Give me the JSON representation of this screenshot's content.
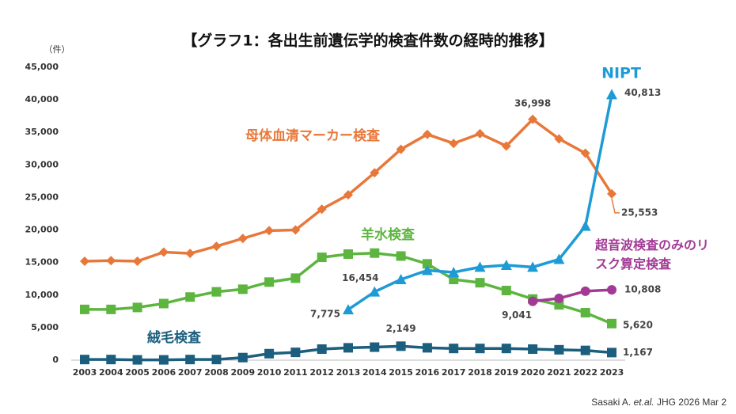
{
  "chart_data": {
    "type": "line",
    "title": "【グラフ1：各出生前遺伝学的検査件数の経時的推移】",
    "y_unit": "（件）",
    "categories": [
      "2003",
      "2004",
      "2005",
      "2006",
      "2007",
      "2008",
      "2009",
      "2010",
      "2011",
      "2012",
      "2013",
      "2014",
      "2015",
      "2016",
      "2017",
      "2018",
      "2019",
      "2020",
      "2021",
      "2022",
      "2023"
    ],
    "ylim": [
      0,
      45000
    ],
    "yticks": [
      0,
      {
        "value": 5000,
        "label": "5,000"
      },
      {
        "value": 10000,
        "label": "10,000"
      },
      {
        "value": 15000,
        "label": "15,000"
      },
      {
        "value": 20000,
        "label": "20,000"
      },
      {
        "value": 25000,
        "label": "25,000"
      },
      {
        "value": 30000,
        "label": "30,000"
      },
      {
        "value": 35000,
        "label": "35,000"
      },
      {
        "value": 40000,
        "label": "40,000"
      },
      {
        "value": 45000,
        "label": "45,000"
      }
    ],
    "grid": false,
    "series": [
      {
        "name": "母体血清マーカー検査",
        "color": "#E8783A",
        "marker": "diamond",
        "values": [
          15200,
          15300,
          15200,
          16600,
          16400,
          17500,
          18700,
          19900,
          20000,
          23200,
          25400,
          28800,
          32400,
          34700,
          33300,
          34800,
          32900,
          36998,
          34000,
          31800,
          25553
        ],
        "value_labels": [
          null,
          null,
          null,
          null,
          null,
          null,
          null,
          null,
          null,
          null,
          null,
          null,
          null,
          null,
          null,
          null,
          null,
          "36,998",
          null,
          null,
          "25,553"
        ]
      },
      {
        "name": "羊水検査",
        "color": "#5DB540",
        "marker": "square",
        "values": [
          7800,
          7800,
          8100,
          8700,
          9700,
          10500,
          10900,
          12000,
          12600,
          15800,
          16300,
          16454,
          16000,
          14800,
          12400,
          11900,
          10700,
          9400,
          8500,
          7300,
          5620
        ],
        "value_labels": [
          null,
          null,
          null,
          null,
          null,
          null,
          null,
          null,
          null,
          null,
          null,
          "16,454",
          null,
          null,
          null,
          null,
          null,
          null,
          null,
          null,
          "5,620"
        ]
      },
      {
        "name": "絨毛検査",
        "color": "#1B5E7E",
        "marker": "square",
        "values": [
          100,
          100,
          50,
          50,
          100,
          100,
          400,
          1000,
          1200,
          1700,
          1900,
          2000,
          2149,
          1900,
          1800,
          1800,
          1800,
          1700,
          1600,
          1500,
          1167
        ],
        "value_labels": [
          null,
          null,
          null,
          null,
          null,
          null,
          null,
          null,
          null,
          null,
          null,
          null,
          "2,149",
          null,
          null,
          null,
          null,
          null,
          null,
          null,
          "1,167"
        ]
      },
      {
        "name": "NIPT",
        "color": "#1E9BD7",
        "marker": "triangle",
        "values": [
          null,
          null,
          null,
          null,
          null,
          null,
          null,
          null,
          null,
          null,
          7775,
          10500,
          12400,
          13800,
          13500,
          14300,
          14600,
          14300,
          15500,
          20600,
          40813
        ],
        "value_labels": [
          null,
          null,
          null,
          null,
          null,
          null,
          null,
          null,
          null,
          null,
          "7,775",
          null,
          null,
          null,
          null,
          null,
          null,
          null,
          null,
          null,
          "40,813"
        ]
      },
      {
        "name": "超音波検査のみのリスク算定検査",
        "color": "#A23A95",
        "marker": "circle",
        "values": [
          null,
          null,
          null,
          null,
          null,
          null,
          null,
          null,
          null,
          null,
          null,
          null,
          null,
          null,
          null,
          null,
          null,
          9041,
          9500,
          10600,
          10808
        ],
        "value_labels": [
          null,
          null,
          null,
          null,
          null,
          null,
          null,
          null,
          null,
          null,
          null,
          null,
          null,
          null,
          null,
          null,
          null,
          "9,041",
          null,
          null,
          "10,808"
        ]
      }
    ],
    "source_parts": [
      "Sasaki A. ",
      "et.al.",
      " JHG 2026 Mar 2"
    ]
  }
}
